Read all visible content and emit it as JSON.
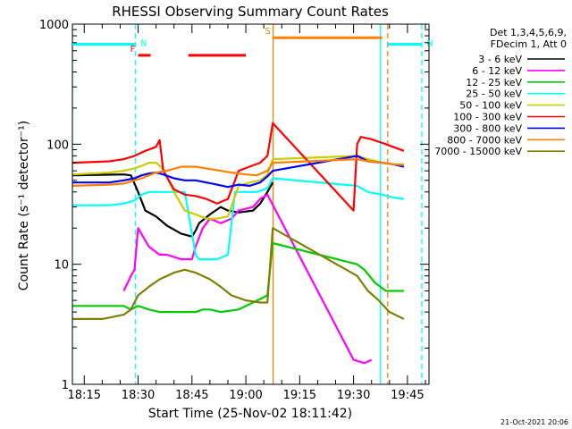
{
  "chart_data": {
    "type": "line",
    "title": "RHESSI Observing Summary Count Rates",
    "xlabel": "Start Time (25-Nov-02 18:11:42)",
    "ylabel": "Count Rate (s⁻¹ detector⁻¹)",
    "y_scale": "log",
    "ylim": [
      1,
      1000
    ],
    "xlim_minutes_from_1800": [
      11.7,
      111
    ],
    "x_ticks": [
      "18:15",
      "18:30",
      "18:45",
      "19:00",
      "19:15",
      "19:30",
      "19:45"
    ],
    "y_ticks": [
      "1",
      "10",
      "100",
      "1000"
    ],
    "info_lines": [
      "Det 1,3,4,5,6,9,",
      "FDecim 1, Att 0"
    ],
    "footer_date": "21-Oct-2021 20:06",
    "series": [
      {
        "name": "3 - 6 keV",
        "color": "#000000",
        "points": [
          [
            11.7,
            55
          ],
          [
            26,
            56
          ],
          [
            28,
            55
          ],
          [
            30,
            40
          ],
          [
            32,
            28
          ],
          [
            35,
            25
          ],
          [
            38,
            21
          ],
          [
            42,
            18
          ],
          [
            45,
            17
          ],
          [
            46,
            19
          ],
          [
            47,
            22
          ],
          [
            50,
            26
          ],
          [
            53,
            30
          ],
          [
            55,
            28
          ],
          [
            58,
            27
          ],
          [
            62,
            28
          ],
          [
            64,
            32
          ],
          [
            66,
            40
          ],
          [
            67.5,
            48
          ]
        ]
      },
      {
        "name": "6 - 12 keV",
        "color": "#ff00ff",
        "points": [
          [
            26,
            6
          ],
          [
            28,
            8
          ],
          [
            29,
            9
          ],
          [
            30,
            20
          ],
          [
            33,
            14
          ],
          [
            36,
            12
          ],
          [
            38,
            12
          ],
          [
            42,
            11
          ],
          [
            45,
            11
          ],
          [
            46,
            14
          ],
          [
            48,
            20
          ],
          [
            50,
            24
          ],
          [
            53,
            22
          ],
          [
            56,
            24
          ],
          [
            58,
            28
          ],
          [
            62,
            30
          ],
          [
            64,
            35
          ],
          [
            66,
            38
          ],
          [
            90,
            1.6
          ],
          [
            93,
            1.5
          ],
          [
            95,
            1.6
          ]
        ]
      },
      {
        "name": "12 - 25 keV",
        "color": "#00cc00",
        "points": [
          [
            11.7,
            4.5
          ],
          [
            20,
            4.5
          ],
          [
            26,
            4.5
          ],
          [
            28,
            4.2
          ],
          [
            30,
            4.5
          ],
          [
            33,
            4.2
          ],
          [
            36,
            4.0
          ],
          [
            40,
            4.0
          ],
          [
            43,
            4.0
          ],
          [
            46,
            4.0
          ],
          [
            48,
            4.2
          ],
          [
            50,
            4.2
          ],
          [
            53,
            4.0
          ],
          [
            58,
            4.2
          ],
          [
            62,
            4.8
          ],
          [
            66,
            5.5
          ],
          [
            67.5,
            15
          ],
          [
            91,
            10
          ],
          [
            93,
            9
          ],
          [
            96,
            7
          ],
          [
            99,
            6
          ],
          [
            102,
            6
          ],
          [
            104,
            6
          ]
        ]
      },
      {
        "name": "25 - 50 keV",
        "color": "#00ffff",
        "points": [
          [
            11.7,
            31
          ],
          [
            22,
            31
          ],
          [
            26,
            32
          ],
          [
            29,
            34
          ],
          [
            31,
            38
          ],
          [
            33,
            40
          ],
          [
            36,
            40
          ],
          [
            40,
            40
          ],
          [
            43,
            40
          ],
          [
            46,
            12
          ],
          [
            47,
            11
          ],
          [
            52,
            11
          ],
          [
            55,
            12
          ],
          [
            57,
            40
          ],
          [
            60,
            40
          ],
          [
            63,
            40
          ],
          [
            66,
            43
          ],
          [
            67.5,
            52
          ],
          [
            91,
            45
          ],
          [
            94,
            40
          ],
          [
            98,
            38
          ],
          [
            101,
            36
          ],
          [
            104,
            35
          ]
        ]
      },
      {
        "name": "50 - 100 keV",
        "color": "#cccc00",
        "points": [
          [
            11.7,
            56
          ],
          [
            22,
            58
          ],
          [
            26,
            60
          ],
          [
            29,
            63
          ],
          [
            31,
            66
          ],
          [
            33,
            70
          ],
          [
            35,
            70
          ],
          [
            37,
            62
          ],
          [
            40,
            40
          ],
          [
            43,
            28
          ],
          [
            46,
            26
          ],
          [
            49,
            24
          ],
          [
            52,
            24
          ],
          [
            55,
            25
          ],
          [
            58,
            45
          ],
          [
            61,
            48
          ],
          [
            64,
            50
          ],
          [
            66,
            56
          ],
          [
            67.5,
            75
          ],
          [
            91,
            80
          ],
          [
            94,
            75
          ],
          [
            98,
            70
          ],
          [
            101,
            68
          ],
          [
            104,
            68
          ]
        ]
      },
      {
        "name": "100 - 300 keV",
        "color": "#ff0000",
        "points": [
          [
            11.7,
            70
          ],
          [
            22,
            72
          ],
          [
            26,
            75
          ],
          [
            29,
            80
          ],
          [
            32,
            88
          ],
          [
            35,
            95
          ],
          [
            36,
            108
          ],
          [
            37,
            60
          ],
          [
            40,
            42
          ],
          [
            43,
            38
          ],
          [
            46,
            37
          ],
          [
            49,
            35
          ],
          [
            52,
            32
          ],
          [
            55,
            35
          ],
          [
            58,
            60
          ],
          [
            61,
            65
          ],
          [
            64,
            70
          ],
          [
            66,
            80
          ],
          [
            67.5,
            150
          ],
          [
            90,
            28
          ],
          [
            91,
            100
          ],
          [
            92,
            115
          ],
          [
            95,
            110
          ],
          [
            99,
            100
          ],
          [
            104,
            88
          ]
        ]
      },
      {
        "name": "300 - 800 keV",
        "color": "#0000ff",
        "points": [
          [
            11.7,
            48
          ],
          [
            22,
            48
          ],
          [
            26,
            50
          ],
          [
            29,
            52
          ],
          [
            31,
            55
          ],
          [
            33,
            57
          ],
          [
            35,
            58
          ],
          [
            37,
            56
          ],
          [
            40,
            52
          ],
          [
            43,
            50
          ],
          [
            46,
            50
          ],
          [
            49,
            48
          ],
          [
            52,
            46
          ],
          [
            55,
            44
          ],
          [
            58,
            46
          ],
          [
            61,
            45
          ],
          [
            64,
            48
          ],
          [
            66,
            54
          ],
          [
            67.5,
            60
          ],
          [
            91,
            80
          ],
          [
            94,
            72
          ],
          [
            98,
            70
          ],
          [
            101,
            68
          ],
          [
            104,
            65
          ]
        ]
      },
      {
        "name": "800 - 7000 keV",
        "color": "#ff8000",
        "points": [
          [
            11.7,
            45
          ],
          [
            22,
            46
          ],
          [
            26,
            47
          ],
          [
            29,
            50
          ],
          [
            31,
            52
          ],
          [
            33,
            55
          ],
          [
            35,
            58
          ],
          [
            38,
            60
          ],
          [
            42,
            65
          ],
          [
            46,
            65
          ],
          [
            50,
            62
          ],
          [
            53,
            60
          ],
          [
            56,
            58
          ],
          [
            60,
            56
          ],
          [
            63,
            55
          ],
          [
            66,
            60
          ],
          [
            67.5,
            70
          ],
          [
            91,
            75
          ],
          [
            94,
            72
          ],
          [
            98,
            70
          ],
          [
            101,
            68
          ],
          [
            104,
            67
          ]
        ]
      },
      {
        "name": "7000 - 15000 keV",
        "color": "#808000",
        "points": [
          [
            11.7,
            3.5
          ],
          [
            20,
            3.5
          ],
          [
            26,
            3.8
          ],
          [
            28,
            4.2
          ],
          [
            30,
            5.5
          ],
          [
            33,
            6.5
          ],
          [
            36,
            7.5
          ],
          [
            40,
            8.5
          ],
          [
            43,
            9.0
          ],
          [
            46,
            8.5
          ],
          [
            48,
            8.0
          ],
          [
            50,
            7.5
          ],
          [
            53,
            6.5
          ],
          [
            56,
            5.5
          ],
          [
            60,
            5.0
          ],
          [
            64,
            4.8
          ],
          [
            66,
            4.8
          ],
          [
            67.5,
            20
          ],
          [
            91,
            8
          ],
          [
            94,
            6
          ],
          [
            97,
            5
          ],
          [
            100,
            4
          ],
          [
            104,
            3.5
          ]
        ]
      }
    ],
    "annotations": [
      {
        "label": "N",
        "color": "#00ffff",
        "level": 680,
        "start": 11.7,
        "end": 29.3
      },
      {
        "label": "N",
        "color": "#00ffff",
        "level": 680,
        "start": 99.5,
        "end": 109
      },
      {
        "label": "F",
        "color": "#ff0000",
        "level": 550,
        "start": 30,
        "end": 33.5
      },
      {
        "label": "",
        "color": "#ff0000",
        "level": 550,
        "start": 44,
        "end": 60
      },
      {
        "label": "S",
        "color": "#ff8000",
        "level": 770,
        "start": 67.6,
        "end": 98
      }
    ],
    "vlines": [
      {
        "x": 11.7,
        "color": "#00ffff",
        "dash": false
      },
      {
        "x": 29.3,
        "color": "#00ffff",
        "dash": true
      },
      {
        "x": 67.6,
        "color": "#ff8000",
        "dash": false
      },
      {
        "x": 97.5,
        "color": "#00ffff",
        "dash": false
      },
      {
        "x": 99.5,
        "color": "#ff8000",
        "dash": true
      },
      {
        "x": 109,
        "color": "#00ffff",
        "dash": true
      }
    ]
  }
}
